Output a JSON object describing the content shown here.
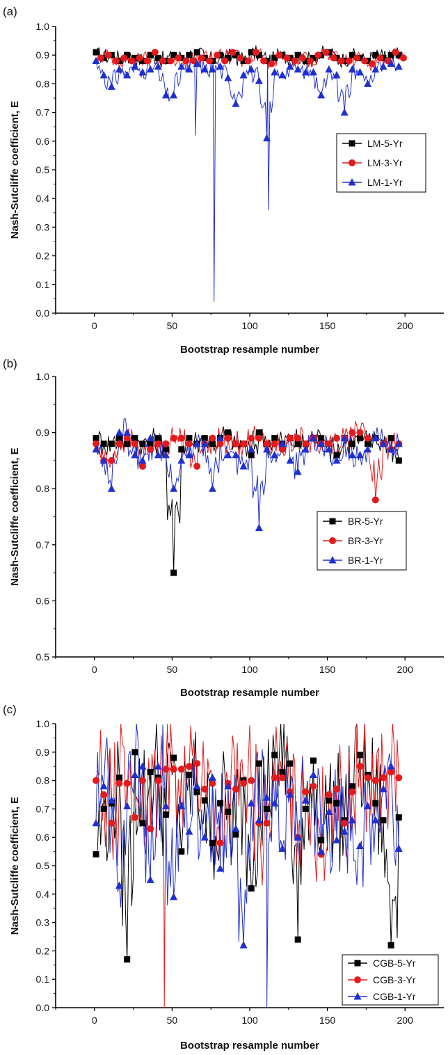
{
  "chart_data": [
    {
      "panel": "(a)",
      "type": "line",
      "xlabel": "Bootstrap resample number",
      "ylabel": "Nash-Sutcliffe coefficient, E",
      "xlim": [
        -25,
        225
      ],
      "ylim": [
        0.0,
        1.0
      ],
      "xticks": [
        "0",
        "50",
        "100",
        "150",
        "200"
      ],
      "yticks": [
        "0.0",
        "0.1",
        "0.2",
        "0.3",
        "0.4",
        "0.5",
        "0.6",
        "0.7",
        "0.8",
        "0.9",
        "1.0"
      ],
      "legend_position": "right",
      "series": [
        {
          "name": "LM-5-Yr",
          "color": "#000000",
          "marker": "square",
          "x": [
            1,
            6,
            11,
            16,
            21,
            26,
            31,
            36,
            41,
            46,
            51,
            56,
            61,
            66,
            71,
            76,
            81,
            86,
            91,
            96,
            101,
            106,
            111,
            116,
            121,
            126,
            131,
            136,
            141,
            146,
            151,
            156,
            161,
            166,
            171,
            176,
            181,
            186,
            191,
            196
          ],
          "values": [
            0.91,
            0.89,
            0.9,
            0.88,
            0.9,
            0.89,
            0.88,
            0.9,
            0.89,
            0.88,
            0.9,
            0.89,
            0.9,
            0.91,
            0.89,
            0.88,
            0.9,
            0.89,
            0.9,
            0.88,
            0.91,
            0.9,
            0.88,
            0.89,
            0.9,
            0.89,
            0.9,
            0.88,
            0.89,
            0.9,
            0.91,
            0.89,
            0.88,
            0.9,
            0.89,
            0.88,
            0.9,
            0.89,
            0.9,
            0.9
          ]
        },
        {
          "name": "LM-3-Yr",
          "color": "#e41a1c",
          "marker": "circle",
          "x": [
            4,
            9,
            14,
            19,
            24,
            29,
            34,
            39,
            44,
            49,
            54,
            59,
            64,
            69,
            74,
            79,
            84,
            89,
            94,
            99,
            104,
            109,
            114,
            119,
            124,
            129,
            134,
            139,
            144,
            149,
            154,
            159,
            164,
            169,
            174,
            179,
            184,
            189,
            194,
            199
          ],
          "values": [
            0.89,
            0.9,
            0.88,
            0.89,
            0.88,
            0.89,
            0.88,
            0.91,
            0.88,
            0.88,
            0.89,
            0.88,
            0.88,
            0.89,
            0.88,
            0.9,
            0.88,
            0.91,
            0.89,
            0.88,
            0.91,
            0.88,
            0.87,
            0.9,
            0.89,
            0.88,
            0.89,
            0.88,
            0.9,
            0.91,
            0.89,
            0.88,
            0.88,
            0.89,
            0.88,
            0.87,
            0.89,
            0.88,
            0.91,
            0.89
          ]
        },
        {
          "name": "LM-1-Yr",
          "color": "#1f2fd0",
          "marker": "triangle",
          "x": [
            1,
            6,
            11,
            16,
            21,
            26,
            31,
            36,
            41,
            46,
            51,
            56,
            61,
            66,
            71,
            76,
            81,
            86,
            91,
            96,
            101,
            106,
            111,
            116,
            121,
            126,
            131,
            136,
            141,
            146,
            151,
            156,
            161,
            166,
            171,
            176,
            181,
            186,
            191,
            196
          ],
          "values": [
            0.88,
            0.83,
            0.79,
            0.85,
            0.83,
            0.86,
            0.84,
            0.85,
            0.86,
            0.76,
            0.76,
            0.86,
            0.85,
            0.87,
            0.85,
            0.85,
            0.86,
            0.82,
            0.73,
            0.83,
            0.85,
            0.81,
            0.61,
            0.84,
            0.83,
            0.86,
            0.85,
            0.84,
            0.84,
            0.76,
            0.85,
            0.83,
            0.7,
            0.85,
            0.84,
            0.8,
            0.85,
            0.86,
            0.87,
            0.86
          ]
        }
      ],
      "annotations": [
        {
          "series": "LM-1-Yr",
          "x": 77,
          "value": 0.04
        },
        {
          "series": "LM-1-Yr",
          "x": 112,
          "value": 0.36
        },
        {
          "series": "LM-1-Yr",
          "x": 65,
          "value": 0.62
        }
      ]
    },
    {
      "panel": "(b)",
      "type": "line",
      "xlabel": "Bootstrap resample number",
      "ylabel": "Nash-Sutcliffe coefficient, E",
      "xlim": [
        -25,
        225
      ],
      "ylim": [
        0.5,
        1.0
      ],
      "xticks": [
        "0",
        "50",
        "100",
        "150",
        "200"
      ],
      "yticks": [
        "0.5",
        "0.6",
        "0.7",
        "0.8",
        "0.9",
        "1.0"
      ],
      "legend_position": "right",
      "series": [
        {
          "name": "BR-5-Yr",
          "color": "#000000",
          "marker": "square",
          "x": [
            1,
            6,
            11,
            16,
            21,
            26,
            31,
            36,
            41,
            46,
            51,
            56,
            61,
            66,
            71,
            76,
            81,
            86,
            91,
            96,
            101,
            106,
            111,
            116,
            121,
            126,
            131,
            136,
            141,
            146,
            151,
            156,
            161,
            166,
            171,
            176,
            181,
            186,
            191,
            196
          ],
          "values": [
            0.89,
            0.88,
            0.88,
            0.89,
            0.88,
            0.89,
            0.88,
            0.88,
            0.89,
            0.87,
            0.65,
            0.87,
            0.89,
            0.88,
            0.89,
            0.88,
            0.89,
            0.9,
            0.88,
            0.88,
            0.86,
            0.9,
            0.88,
            0.89,
            0.88,
            0.89,
            0.88,
            0.88,
            0.89,
            0.89,
            0.88,
            0.86,
            0.89,
            0.88,
            0.89,
            0.88,
            0.89,
            0.88,
            0.89,
            0.85
          ]
        },
        {
          "name": "BR-3-Yr",
          "color": "#e41a1c",
          "marker": "circle",
          "x": [
            1,
            6,
            11,
            16,
            21,
            26,
            31,
            36,
            41,
            46,
            51,
            56,
            61,
            66,
            71,
            76,
            81,
            86,
            91,
            96,
            101,
            106,
            111,
            116,
            121,
            126,
            131,
            136,
            141,
            146,
            151,
            156,
            161,
            166,
            171,
            176,
            181,
            186,
            191,
            196
          ],
          "values": [
            0.88,
            0.85,
            0.85,
            0.88,
            0.89,
            0.88,
            0.84,
            0.87,
            0.88,
            0.88,
            0.89,
            0.89,
            0.88,
            0.84,
            0.88,
            0.89,
            0.88,
            0.89,
            0.88,
            0.88,
            0.89,
            0.89,
            0.88,
            0.88,
            0.87,
            0.89,
            0.89,
            0.88,
            0.89,
            0.88,
            0.88,
            0.89,
            0.89,
            0.9,
            0.9,
            0.89,
            0.78,
            0.88,
            0.87,
            0.88
          ]
        },
        {
          "name": "BR-1-Yr",
          "color": "#1f2fd0",
          "marker": "triangle",
          "x": [
            1,
            6,
            11,
            16,
            21,
            26,
            31,
            36,
            41,
            46,
            51,
            56,
            61,
            66,
            71,
            76,
            81,
            86,
            91,
            96,
            101,
            106,
            111,
            116,
            121,
            126,
            131,
            136,
            141,
            146,
            151,
            156,
            161,
            166,
            171,
            176,
            181,
            186,
            191,
            196
          ],
          "values": [
            0.87,
            0.85,
            0.8,
            0.9,
            0.9,
            0.86,
            0.85,
            0.89,
            0.86,
            0.86,
            0.8,
            0.85,
            0.86,
            0.88,
            0.88,
            0.8,
            0.89,
            0.86,
            0.86,
            0.84,
            0.87,
            0.73,
            0.87,
            0.86,
            0.88,
            0.85,
            0.83,
            0.87,
            0.89,
            0.88,
            0.87,
            0.85,
            0.89,
            0.86,
            0.86,
            0.87,
            0.89,
            0.88,
            0.87,
            0.88
          ]
        }
      ]
    },
    {
      "panel": "(c)",
      "type": "line",
      "xlabel": "Bootstrap resample number",
      "ylabel": "Nash-Sutcliffe coefficient, E",
      "xlim": [
        -25,
        225
      ],
      "ylim": [
        0.0,
        1.0
      ],
      "xticks": [
        "0",
        "50",
        "100",
        "150",
        "200"
      ],
      "yticks": [
        "0.0",
        "0.1",
        "0.2",
        "0.3",
        "0.4",
        "0.5",
        "0.6",
        "0.7",
        "0.8",
        "0.9",
        "1.0"
      ],
      "legend_position": "bottom-right",
      "series": [
        {
          "name": "CGB-5-Yr",
          "color": "#000000",
          "marker": "square",
          "x": [
            1,
            6,
            11,
            16,
            21,
            26,
            31,
            36,
            41,
            46,
            51,
            56,
            61,
            66,
            71,
            76,
            81,
            86,
            91,
            96,
            101,
            106,
            111,
            116,
            121,
            126,
            131,
            136,
            141,
            146,
            151,
            156,
            161,
            166,
            171,
            176,
            181,
            186,
            191,
            196
          ],
          "values": [
            0.54,
            0.7,
            0.72,
            0.81,
            0.17,
            0.9,
            0.65,
            0.83,
            0.81,
            0.68,
            0.88,
            0.55,
            0.82,
            0.76,
            0.73,
            0.58,
            0.72,
            0.69,
            0.61,
            0.8,
            0.42,
            0.86,
            0.7,
            0.89,
            0.83,
            0.86,
            0.24,
            0.7,
            0.87,
            0.59,
            0.73,
            0.72,
            0.66,
            0.78,
            0.89,
            0.82,
            0.72,
            0.66,
            0.22,
            0.67
          ]
        },
        {
          "name": "CGB-3-Yr",
          "color": "#e41a1c",
          "marker": "circle",
          "x": [
            1,
            6,
            11,
            16,
            21,
            26,
            31,
            36,
            41,
            46,
            51,
            56,
            61,
            66,
            71,
            76,
            81,
            86,
            91,
            96,
            101,
            106,
            111,
            116,
            121,
            126,
            131,
            136,
            141,
            146,
            151,
            156,
            161,
            166,
            171,
            176,
            181,
            186,
            191,
            196
          ],
          "values": [
            0.8,
            0.75,
            0.65,
            0.79,
            0.79,
            0.67,
            0.8,
            0.63,
            0.8,
            0.84,
            0.84,
            0.84,
            0.85,
            0.86,
            0.77,
            0.79,
            0.58,
            0.79,
            0.77,
            0.79,
            0.8,
            0.65,
            0.65,
            0.81,
            0.81,
            0.76,
            0.6,
            0.76,
            0.78,
            0.54,
            0.75,
            0.77,
            0.65,
            0.76,
            0.85,
            0.81,
            0.8,
            0.81,
            0.83,
            0.81
          ]
        },
        {
          "name": "CGB-1-Yr",
          "color": "#1f2fd0",
          "marker": "triangle",
          "x": [
            1,
            6,
            11,
            16,
            21,
            26,
            31,
            36,
            41,
            46,
            51,
            56,
            61,
            66,
            71,
            76,
            81,
            86,
            91,
            96,
            101,
            106,
            111,
            116,
            121,
            126,
            131,
            136,
            141,
            146,
            151,
            156,
            161,
            166,
            171,
            176,
            181,
            186,
            191,
            196
          ],
          "values": [
            0.65,
            0.78,
            0.73,
            0.43,
            0.71,
            0.82,
            0.85,
            0.45,
            0.85,
            0.71,
            0.39,
            0.71,
            0.62,
            0.78,
            0.6,
            0.81,
            0.49,
            0.78,
            0.63,
            0.22,
            0.72,
            0.66,
            0.74,
            0.72,
            0.56,
            0.75,
            0.6,
            0.73,
            0.82,
            0.55,
            0.69,
            0.59,
            0.62,
            0.66,
            0.57,
            0.71,
            0.66,
            0.77,
            0.85,
            0.56
          ]
        }
      ],
      "annotations": [
        {
          "series": "CGB-3-Yr",
          "x": 45,
          "value": 0.0
        },
        {
          "series": "CGB-1-Yr",
          "x": 111,
          "value": 0.0
        }
      ]
    }
  ]
}
